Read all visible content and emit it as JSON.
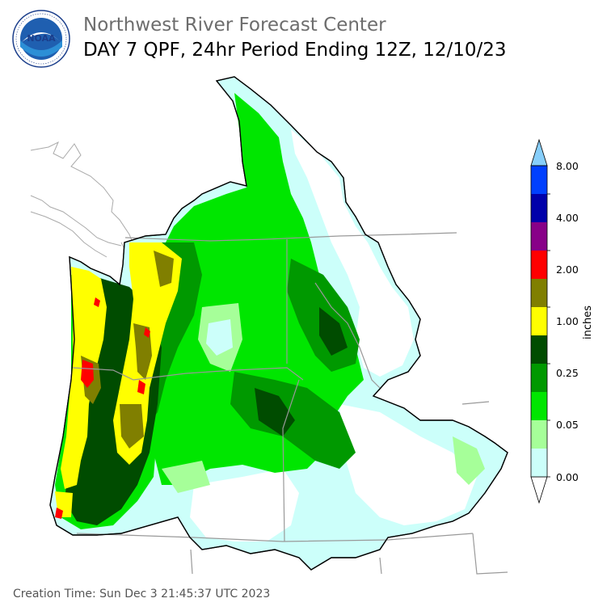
{
  "header": {
    "org_name": "Northwest River Forecast Center",
    "product_title": "DAY 7 QPF, 24hr Period Ending 12Z, 12/10/23"
  },
  "logo": {
    "text": "NOAA",
    "ring_text": "NATIONAL OCEANIC AND ATMOSPHERIC ADMINISTRATION · U.S. DEPARTMENT OF COMMERCE"
  },
  "colorbar": {
    "unit_label": "inches",
    "tick_labels": [
      "8.00",
      "4.00",
      "2.00",
      "1.00",
      "0.25",
      "0.05",
      "0.00"
    ],
    "bins": [
      {
        "color": "#ffffff"
      },
      {
        "color": "#ccfffa"
      },
      {
        "color": "#a6ff99"
      },
      {
        "color": "#00e600"
      },
      {
        "color": "#009900"
      },
      {
        "color": "#004c00"
      },
      {
        "color": "#ffff00"
      },
      {
        "color": "#807f00"
      },
      {
        "color": "#ff0000"
      },
      {
        "color": "#880088"
      },
      {
        "color": "#0000aa"
      },
      {
        "color": "#0040ff"
      },
      {
        "color": "#87cefa"
      }
    ]
  },
  "map": {
    "coast_color": "#aaaaaa",
    "basin_outline_color": "#000000",
    "state_line_color": "#999999"
  },
  "footer": {
    "creation_time": "Creation Time: Sun Dec  3 21:45:37 UTC 2023"
  }
}
